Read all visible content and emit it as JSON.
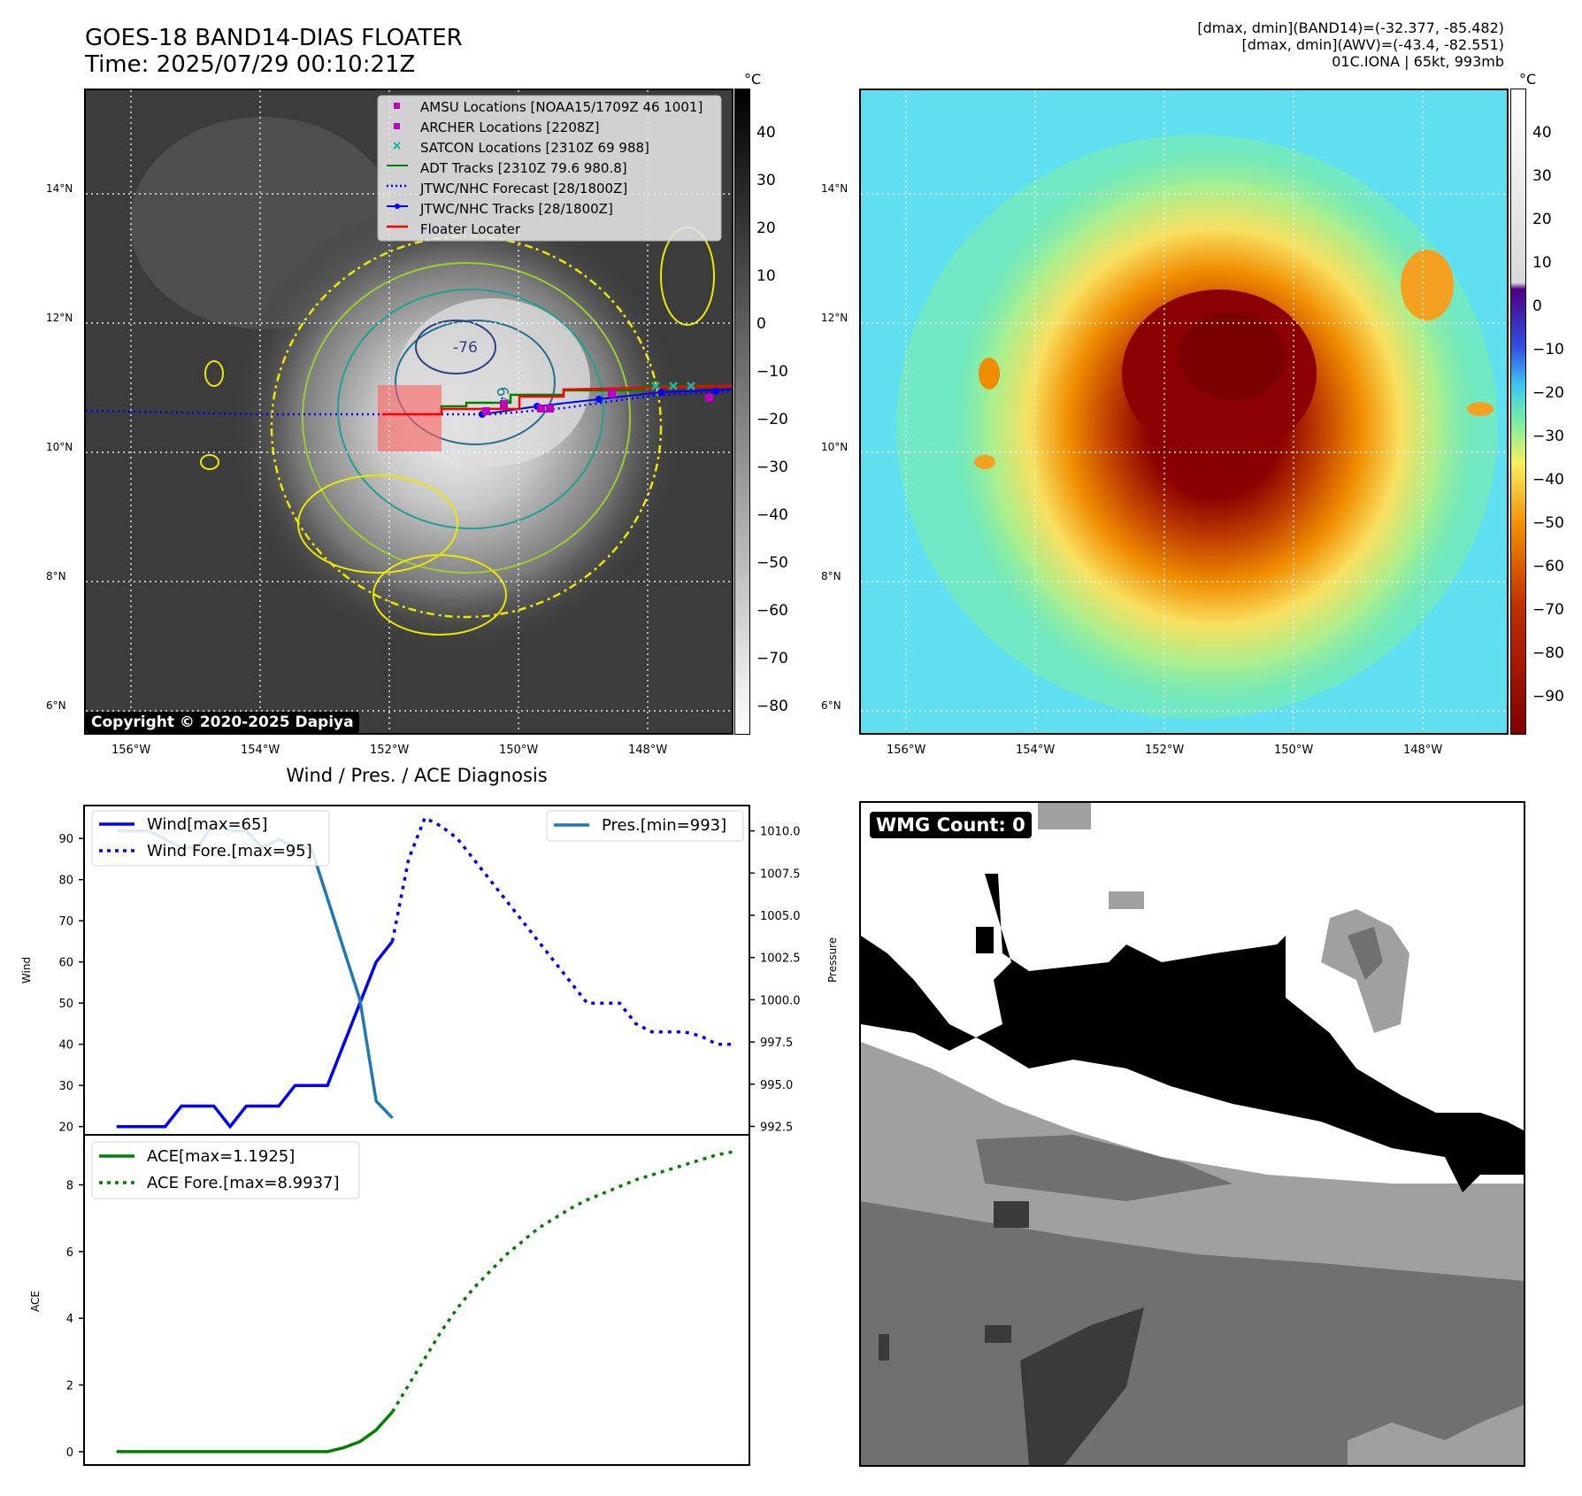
{
  "header": {
    "title_line1": "GOES-18 BAND14-DIAS FLOATER",
    "title_line2": "Time: 2025/07/29 00:10:21Z",
    "right_line1": "[dmax, dmin](BAND14)=(-32.377, -85.482)",
    "right_line2": "[dmax, dmin](AWV)=(-43.4, -82.551)",
    "right_line3": "01C.IONA | 65kt, 993mb"
  },
  "map": {
    "lat_labels": [
      "14°N",
      "12°N",
      "10°N",
      "8°N",
      "6°N"
    ],
    "lon_labels": [
      "156°W",
      "154°W",
      "152°W",
      "150°W",
      "148°W"
    ],
    "contour_labels": [
      "-76",
      "64"
    ],
    "copyright": "Copyright © 2020-2025 Dapiya",
    "legend": [
      {
        "label": "AMSU Locations [NOAA15/1709Z 46 1001]",
        "marker": "square",
        "color": "#c000c0"
      },
      {
        "label": "ARCHER Locations [2208Z]",
        "marker": "square",
        "color": "#c000c0"
      },
      {
        "label": "SATCON Locations [2310Z 69 988]",
        "marker": "x",
        "color": "#20b2aa"
      },
      {
        "label": "ADT Tracks [2310Z 79.6 980.8]",
        "marker": "line",
        "color": "#008000"
      },
      {
        "label": "JTWC/NHC Forecast [28/1800Z]",
        "marker": "dotted",
        "color": "#0000ff"
      },
      {
        "label": "JTWC/NHC Tracks [28/1800Z]",
        "marker": "line-dot",
        "color": "#0000ff"
      },
      {
        "label": "Floater Locater",
        "marker": "line",
        "color": "#ff0000"
      }
    ]
  },
  "colorbar_left": {
    "unit": "°C",
    "ticks": [
      "40",
      "30",
      "20",
      "10",
      "0",
      "−10",
      "−20",
      "−30",
      "−40",
      "−50",
      "−60",
      "−70",
      "−80"
    ]
  },
  "colorbar_right": {
    "unit": "°C",
    "ticks": [
      "40",
      "30",
      "20",
      "10",
      "0",
      "−10",
      "−20",
      "−30",
      "−40",
      "−50",
      "−60",
      "−70",
      "−80",
      "−90"
    ]
  },
  "diag": {
    "title": "Wind / Pres. / ACE Diagnosis",
    "wind_ylabel": "Wind",
    "pres_ylabel": "Pressure",
    "ace_ylabel": "ACE",
    "wind_legend": [
      "Wind[max=65]",
      "Wind Fore.[max=95]"
    ],
    "pres_legend": [
      "Pres.[min=993]"
    ],
    "ace_legend": [
      "ACE[max=1.1925]",
      "ACE Fore.[max=8.9937]"
    ],
    "wind_ticks": [
      "90",
      "80",
      "70",
      "60",
      "50",
      "40",
      "30",
      "20"
    ],
    "pres_ticks": [
      "1010.0",
      "1007.5",
      "1005.0",
      "1002.5",
      "1000.0",
      "997.5",
      "995.0",
      "992.5"
    ],
    "ace_ticks": [
      "8",
      "6",
      "4",
      "2",
      "0"
    ]
  },
  "wmg": {
    "label": "WMG Count: 0"
  },
  "colors": {
    "wind": "#0000ff",
    "pressure": "#1f77b4",
    "ace": "#008000"
  },
  "chart_data": [
    {
      "type": "line",
      "title": "Wind / Pres. / ACE Diagnosis",
      "ylabel": "Wind",
      "ylim": [
        18,
        98
      ],
      "series": [
        {
          "name": "Wind[max=65]",
          "x": [
            0,
            1,
            2,
            3,
            4,
            5,
            6,
            7,
            8,
            9,
            10,
            11,
            12,
            13,
            14,
            15,
            16,
            17
          ],
          "values": [
            20,
            20,
            20,
            20,
            25,
            25,
            25,
            20,
            25,
            25,
            25,
            30,
            30,
            30,
            40,
            50,
            60,
            65
          ]
        },
        {
          "name": "Wind Fore.[max=95]",
          "x": [
            17,
            18,
            19,
            20,
            21,
            22,
            23,
            24,
            25,
            26,
            27,
            28,
            29,
            30,
            31,
            32,
            33,
            34,
            35,
            36,
            37,
            38
          ],
          "values": [
            65,
            85,
            95,
            93,
            90,
            85,
            80,
            75,
            70,
            65,
            60,
            55,
            50,
            50,
            50,
            45,
            43,
            43,
            43,
            42,
            40,
            40
          ]
        }
      ]
    },
    {
      "type": "line",
      "ylabel": "Pressure",
      "ylim": [
        992,
        1011.5
      ],
      "series": [
        {
          "name": "Pres.[min=993]",
          "x": [
            0,
            1,
            2,
            3,
            4,
            5,
            6,
            7,
            8,
            9,
            10,
            11,
            12,
            13,
            14,
            15,
            16,
            17
          ],
          "values": [
            1010,
            1010,
            1010,
            1009.5,
            1009,
            1009,
            1010.5,
            1010,
            1010,
            1009,
            1009.5,
            1009,
            1009,
            1006,
            1003,
            1000,
            994,
            993
          ]
        }
      ]
    },
    {
      "type": "line",
      "ylabel": "ACE",
      "ylim": [
        -0.4,
        9.5
      ],
      "series": [
        {
          "name": "ACE[max=1.1925]",
          "x": [
            0,
            1,
            2,
            3,
            4,
            5,
            6,
            7,
            8,
            9,
            10,
            11,
            12,
            13,
            14,
            15,
            16,
            17
          ],
          "values": [
            0,
            0,
            0,
            0,
            0,
            0,
            0,
            0,
            0,
            0,
            0,
            0,
            0,
            0,
            0.12,
            0.3,
            0.65,
            1.1925
          ]
        },
        {
          "name": "ACE Fore.[max=8.9937]",
          "x": [
            17,
            18,
            19,
            20,
            21,
            22,
            23,
            24,
            25,
            26,
            27,
            28,
            29,
            30,
            31,
            32,
            33,
            34,
            35,
            36,
            37,
            38
          ],
          "values": [
            1.1925,
            2.0,
            2.8,
            3.6,
            4.3,
            4.9,
            5.4,
            5.9,
            6.3,
            6.7,
            7.0,
            7.3,
            7.55,
            7.75,
            7.95,
            8.15,
            8.3,
            8.45,
            8.6,
            8.75,
            8.9,
            8.9937
          ]
        }
      ]
    }
  ]
}
